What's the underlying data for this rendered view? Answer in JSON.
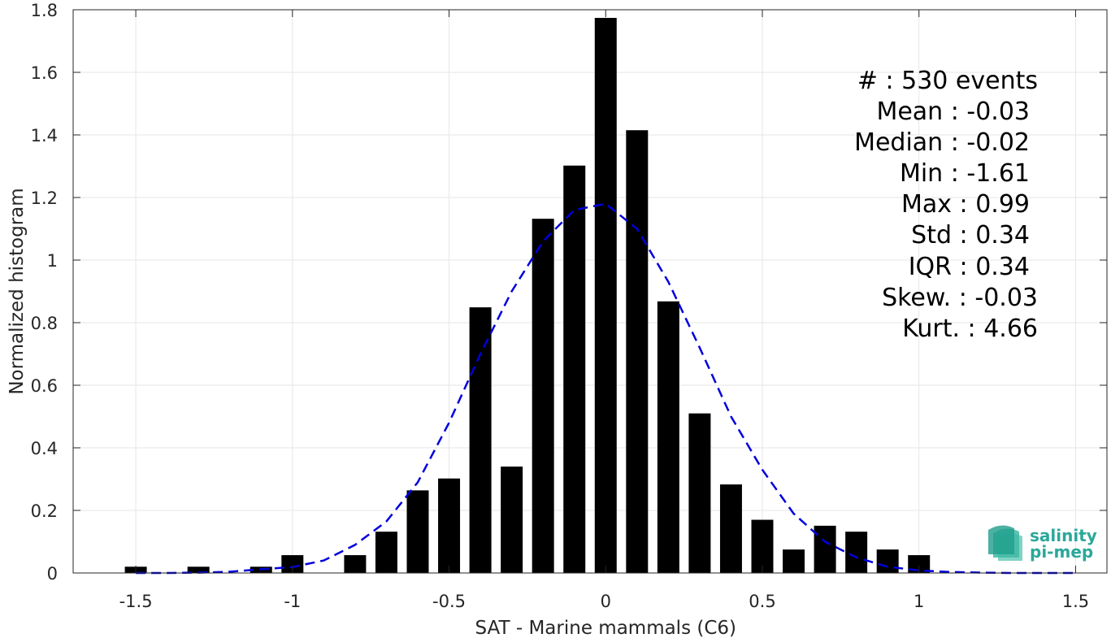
{
  "chart_data": {
    "type": "bar",
    "xlabel": "SAT - Marine mammals (C6)",
    "ylabel": "Normalized histogram",
    "xlim": [
      -1.7,
      1.6
    ],
    "ylim": [
      0,
      1.8
    ],
    "xticks": [
      -1.5,
      -1,
      -0.5,
      0,
      0.5,
      1,
      1.5
    ],
    "xtick_labels": [
      "-1.5",
      "-1",
      "-0.5",
      "0",
      "0.5",
      "1",
      "1.5"
    ],
    "yticks": [
      0,
      0.2,
      0.4,
      0.6,
      0.8,
      1,
      1.2,
      1.4,
      1.6,
      1.8
    ],
    "ytick_labels": [
      "0",
      "0.2",
      "0.4",
      "0.6",
      "0.8",
      "1",
      "1.2",
      "1.4",
      "1.6",
      "1.8"
    ],
    "grid": true,
    "bin_width": 0.1,
    "bars": {
      "x": [
        -1.5,
        -1.3,
        -1.1,
        -1.0,
        -0.8,
        -0.7,
        -0.6,
        -0.5,
        -0.4,
        -0.3,
        -0.2,
        -0.1,
        0.0,
        0.1,
        0.2,
        0.3,
        0.4,
        0.5,
        0.6,
        0.7,
        0.8,
        0.9,
        1.0
      ],
      "values": [
        0.02,
        0.02,
        0.02,
        0.057,
        0.057,
        0.132,
        0.264,
        0.302,
        0.849,
        0.34,
        1.132,
        1.302,
        1.774,
        1.415,
        0.868,
        0.51,
        0.283,
        0.17,
        0.075,
        0.151,
        0.132,
        0.075,
        0.057
      ],
      "color": "#000000"
    },
    "fit": {
      "type": "gaussian",
      "style": "dashed",
      "color": "#0000dd",
      "x": [
        -1.5,
        -1.4,
        -1.3,
        -1.2,
        -1.1,
        -1.0,
        -0.9,
        -0.8,
        -0.7,
        -0.6,
        -0.5,
        -0.4,
        -0.3,
        -0.2,
        -0.1,
        0.0,
        0.1,
        0.2,
        0.3,
        0.4,
        0.5,
        0.6,
        0.7,
        0.8,
        0.9,
        1.0,
        1.1,
        1.2,
        1.3,
        1.4,
        1.5
      ],
      "y": [
        0.0,
        0.0,
        0.001,
        0.004,
        0.012,
        0.019,
        0.04,
        0.09,
        0.165,
        0.29,
        0.48,
        0.7,
        0.9,
        1.06,
        1.16,
        1.18,
        1.1,
        0.93,
        0.72,
        0.5,
        0.33,
        0.19,
        0.1,
        0.05,
        0.02,
        0.008,
        0.003,
        0.001,
        0.0,
        0.0,
        0.0
      ]
    },
    "stats": [
      {
        "label": "#  : 530 events"
      },
      {
        "label": "Mean : -0.03"
      },
      {
        "label": "Median : -0.02"
      },
      {
        "label": "Min : -1.61"
      },
      {
        "label": "Max : 0.99"
      },
      {
        "label": "Std : 0.34"
      },
      {
        "label": "IQR : 0.34"
      },
      {
        "label": "Skew. : -0.03"
      },
      {
        "label": "Kurt. : 4.66"
      }
    ],
    "logo": {
      "line1": "salinity",
      "line2": "pi-mep"
    }
  }
}
